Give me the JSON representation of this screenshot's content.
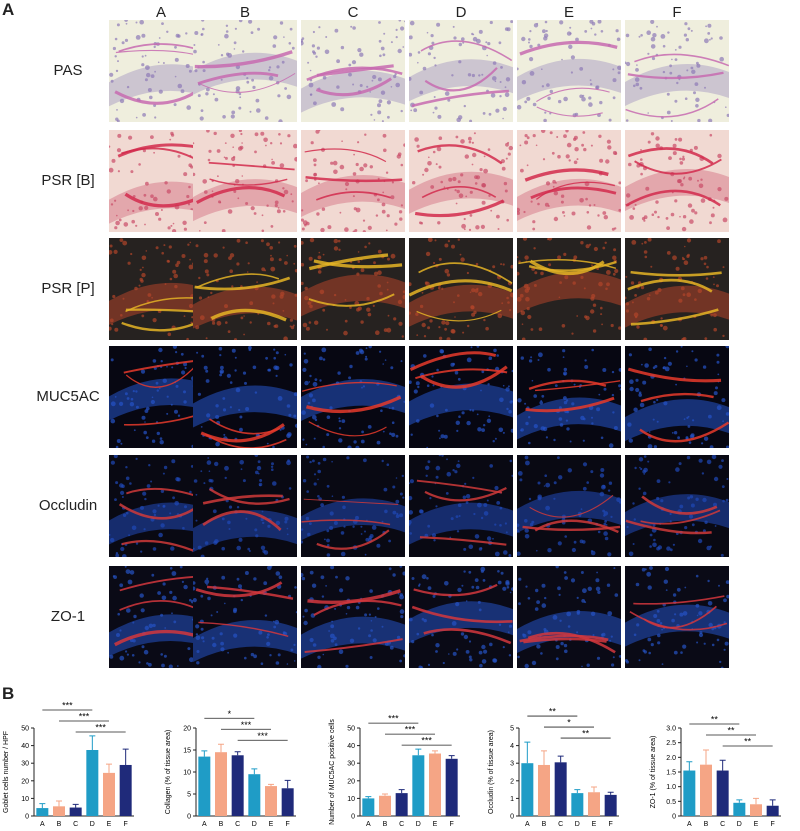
{
  "panels": {
    "a": "A",
    "b": "B"
  },
  "columns": [
    "A",
    "B",
    "C",
    "D",
    "E",
    "F"
  ],
  "rows": [
    "PAS",
    "PSR [B]",
    "PSR [P]",
    "MUC5AC",
    "Occludin",
    "ZO-1"
  ],
  "colors": {
    "A": "#1f9cc6",
    "B": "#f5a585",
    "C": "#1f2a7a",
    "D": "#1f9cc6",
    "E": "#f5a585",
    "F": "#1f2a7a"
  },
  "chart_data": [
    {
      "type": "bar",
      "categories": [
        "A",
        "B",
        "C",
        "D",
        "E",
        "F"
      ],
      "values": [
        4.5,
        5.5,
        4.8,
        37.5,
        24.5,
        29
      ],
      "errors": [
        2.5,
        3,
        1.8,
        8,
        5,
        9
      ],
      "ylabel": "Goblet cells number / HPF",
      "ylim": [
        0,
        50
      ],
      "yticks": [
        "0",
        "10",
        "20",
        "30",
        "40",
        "50"
      ],
      "significance": [
        {
          "from": "A",
          "to": "D",
          "label": "***"
        },
        {
          "from": "B",
          "to": "E",
          "label": "***"
        },
        {
          "from": "C",
          "to": "F",
          "label": "***"
        }
      ]
    },
    {
      "type": "bar",
      "categories": [
        "A",
        "B",
        "C",
        "D",
        "E",
        "F"
      ],
      "values": [
        13.5,
        14.5,
        13.8,
        9.5,
        6.8,
        6.3
      ],
      "errors": [
        1.3,
        1.8,
        0.8,
        1.2,
        0.4,
        1.8
      ],
      "ylabel": "Collagen (% of tissue area)",
      "ylim": [
        0,
        20
      ],
      "yticks": [
        "0",
        "5",
        "10",
        "15",
        "20"
      ],
      "significance": [
        {
          "from": "A",
          "to": "D",
          "label": "*"
        },
        {
          "from": "B",
          "to": "E",
          "label": "***"
        },
        {
          "from": "C",
          "to": "F",
          "label": "***"
        }
      ]
    },
    {
      "type": "bar",
      "categories": [
        "A",
        "B",
        "C",
        "D",
        "E",
        "F"
      ],
      "values": [
        10,
        11.5,
        13,
        34.5,
        35.5,
        32.5
      ],
      "errors": [
        1,
        1,
        2,
        3.5,
        1.5,
        1.8
      ],
      "ylabel": "Number of MUC5AC positive cells",
      "ylim": [
        0,
        50
      ],
      "yticks": [
        "0",
        "10",
        "20",
        "30",
        "40",
        "50"
      ],
      "significance": [
        {
          "from": "A",
          "to": "D",
          "label": "***"
        },
        {
          "from": "B",
          "to": "E",
          "label": "***"
        },
        {
          "from": "C",
          "to": "F",
          "label": "***"
        }
      ]
    },
    {
      "type": "bar",
      "categories": [
        "A",
        "B",
        "C",
        "D",
        "E",
        "F"
      ],
      "values": [
        3,
        2.9,
        3.05,
        1.3,
        1.35,
        1.2
      ],
      "errors": [
        1.2,
        0.8,
        0.35,
        0.2,
        0.3,
        0.15
      ],
      "ylabel": "Occludin (% of tissue area)",
      "ylim": [
        0,
        5
      ],
      "yticks": [
        "0",
        "1",
        "2",
        "3",
        "4",
        "5"
      ],
      "significance": [
        {
          "from": "A",
          "to": "D",
          "label": "**"
        },
        {
          "from": "B",
          "to": "E",
          "label": "*"
        },
        {
          "from": "C",
          "to": "F",
          "label": "**"
        }
      ]
    },
    {
      "type": "bar",
      "categories": [
        "A",
        "B",
        "C",
        "D",
        "E",
        "F"
      ],
      "values": [
        1.55,
        1.75,
        1.55,
        0.45,
        0.4,
        0.35
      ],
      "errors": [
        0.3,
        0.5,
        0.35,
        0.1,
        0.2,
        0.2
      ],
      "ylabel": "ZO-1 (% of tissue area)",
      "ylim": [
        0,
        3
      ],
      "yticks": [
        "0",
        "0.5",
        "1.0",
        "1.5",
        "2.0",
        "2.5",
        "3.0"
      ],
      "significance": [
        {
          "from": "A",
          "to": "D",
          "label": "**"
        },
        {
          "from": "B",
          "to": "E",
          "label": "**"
        },
        {
          "from": "C",
          "to": "F",
          "label": "**"
        }
      ]
    }
  ]
}
